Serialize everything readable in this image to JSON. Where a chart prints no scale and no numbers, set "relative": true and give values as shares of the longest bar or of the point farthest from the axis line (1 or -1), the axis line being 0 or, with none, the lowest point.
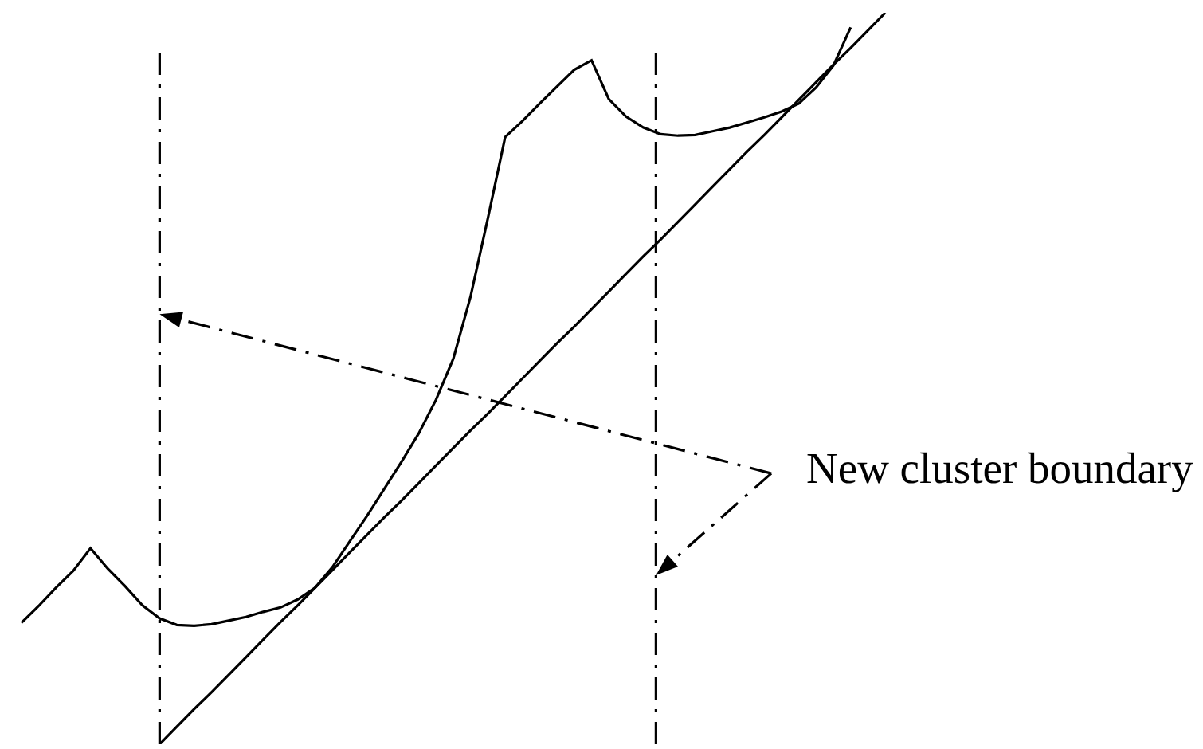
{
  "chart_data": {
    "type": "line",
    "relative": true,
    "categories": [
      null,
      null,
      null,
      null,
      null,
      null,
      null,
      null,
      null,
      null,
      null,
      null,
      null,
      null,
      null,
      null,
      null,
      null,
      null,
      null,
      null,
      null,
      null,
      null,
      null,
      null,
      null,
      null,
      null,
      null,
      null,
      null,
      null,
      null,
      null,
      null,
      null,
      null,
      null,
      null,
      null,
      null,
      null,
      null,
      null,
      null,
      null,
      null,
      null,
      null,
      null
    ],
    "series": [
      {
        "color": "#000000",
        "values": [
          0.166,
          0.189,
          0.214,
          0.237,
          0.268,
          0.24,
          0.216,
          0.19,
          0.172,
          0.163,
          0.162,
          0.164,
          0.169,
          0.174,
          0.181,
          0.187,
          0.198,
          0.214,
          0.242,
          0.277,
          0.312,
          0.349,
          0.386,
          0.425,
          0.471,
          0.527,
          0.612,
          0.719,
          0.83,
          0.852,
          0.876,
          0.899,
          0.922,
          0.935,
          0.882,
          0.858,
          0.843,
          0.834,
          0.832,
          0.833,
          0.838,
          0.843,
          0.85,
          0.857,
          0.865,
          0.876,
          0.898,
          0.928,
          0.98,
          null,
          null
        ]
      },
      {
        "color": "#000000",
        "values": [
          null,
          null,
          null,
          null,
          null,
          null,
          null,
          null,
          0,
          0.024,
          0.048,
          0.071,
          0.095,
          0.119,
          0.143,
          0.167,
          0.19,
          0.214,
          0.238,
          0.262,
          0.286,
          0.31,
          0.333,
          0.357,
          0.381,
          0.405,
          0.429,
          0.452,
          0.476,
          0.5,
          0.524,
          0.548,
          0.571,
          0.595,
          0.619,
          0.643,
          0.667,
          0.69,
          0.714,
          0.738,
          0.762,
          0.786,
          0.81,
          0.833,
          0.857,
          0.881,
          0.905,
          0.929,
          0.952,
          0.976,
          1
        ]
      }
    ],
    "marker": "none",
    "line_style": "solid",
    "annotations": [
      "New cluster boundary"
    ]
  }
}
